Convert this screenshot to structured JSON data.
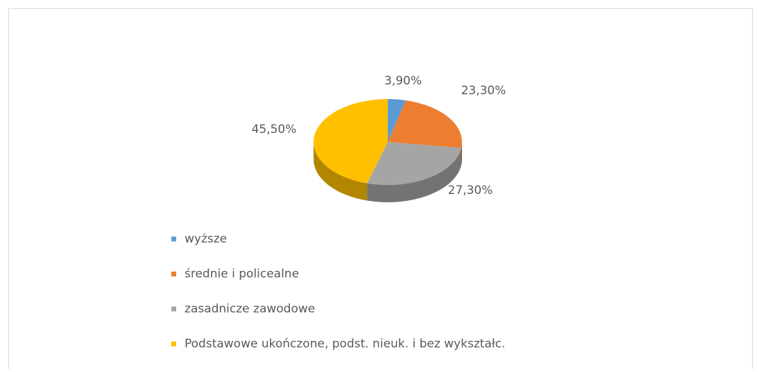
{
  "chart_data": {
    "type": "pie",
    "categories": [
      "wyższe",
      "średnie i policealne",
      "zasadnicze zawodowe",
      "Podstawowe ukończone, podst. nieuk. i bez wykształc."
    ],
    "values": [
      3.9,
      23.3,
      27.3,
      45.5
    ],
    "value_labels": [
      "3,90%",
      "23,30%",
      "27,30%",
      "45,50%"
    ],
    "colors": [
      "#5b9bd5",
      "#ed7d31",
      "#a5a5a5",
      "#ffc000"
    ],
    "legend": "bottom"
  }
}
